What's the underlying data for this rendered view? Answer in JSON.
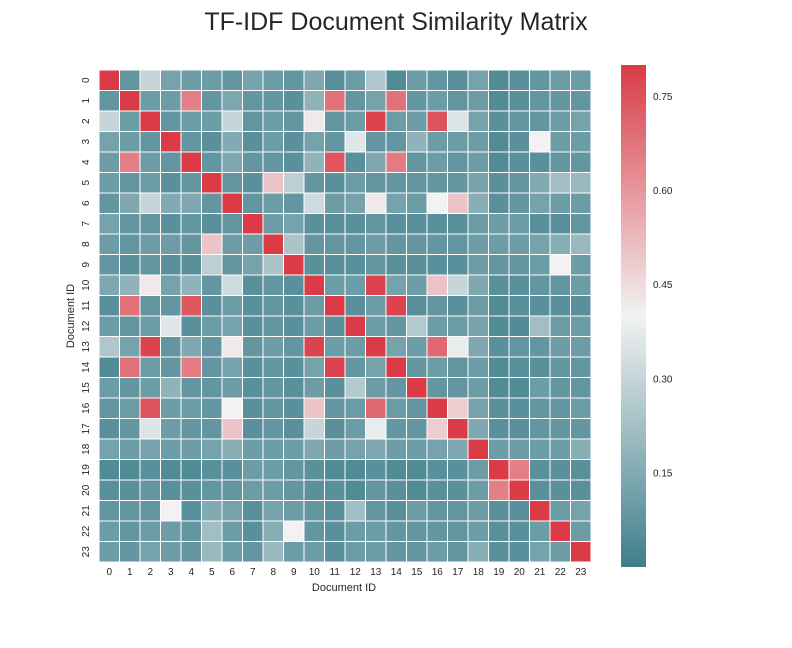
{
  "chart_data": {
    "type": "heatmap",
    "title": "TF-IDF Document Similarity Matrix",
    "xlabel": "Document ID",
    "ylabel": "Document ID",
    "x_categories": [
      "0",
      "1",
      "2",
      "3",
      "4",
      "5",
      "6",
      "7",
      "8",
      "9",
      "10",
      "11",
      "12",
      "13",
      "14",
      "15",
      "16",
      "17",
      "18",
      "19",
      "20",
      "21",
      "22",
      "23"
    ],
    "y_categories": [
      "0",
      "1",
      "2",
      "3",
      "4",
      "5",
      "6",
      "7",
      "8",
      "9",
      "10",
      "11",
      "12",
      "13",
      "14",
      "15",
      "16",
      "17",
      "18",
      "19",
      "20",
      "21",
      "22",
      "23"
    ],
    "colorbar": {
      "min": 0.0,
      "max": 0.8,
      "ticks": [
        "0.15",
        "0.30",
        "0.45",
        "0.60",
        "0.75"
      ],
      "low_color": "#3f7f8c",
      "mid_color": "#f2f2f2",
      "high_color": "#da3b46"
    },
    "values": [
      [
        0.8,
        0.08,
        0.3,
        0.12,
        0.1,
        0.1,
        0.08,
        0.12,
        0.1,
        0.08,
        0.14,
        0.06,
        0.1,
        0.25,
        0.04,
        0.1,
        0.08,
        0.06,
        0.12,
        0.04,
        0.06,
        0.08,
        0.1,
        0.1
      ],
      [
        0.08,
        0.8,
        0.1,
        0.1,
        0.65,
        0.08,
        0.14,
        0.08,
        0.08,
        0.06,
        0.18,
        0.68,
        0.08,
        0.12,
        0.68,
        0.08,
        0.1,
        0.08,
        0.1,
        0.04,
        0.06,
        0.08,
        0.08,
        0.08
      ],
      [
        0.3,
        0.1,
        0.8,
        0.08,
        0.1,
        0.1,
        0.3,
        0.08,
        0.1,
        0.08,
        0.42,
        0.08,
        0.1,
        0.78,
        0.1,
        0.1,
        0.75,
        0.35,
        0.12,
        0.06,
        0.08,
        0.08,
        0.1,
        0.12
      ],
      [
        0.12,
        0.1,
        0.08,
        0.8,
        0.08,
        0.06,
        0.15,
        0.06,
        0.1,
        0.06,
        0.12,
        0.08,
        0.36,
        0.08,
        0.08,
        0.18,
        0.1,
        0.1,
        0.1,
        0.04,
        0.06,
        0.4,
        0.1,
        0.1
      ],
      [
        0.1,
        0.65,
        0.1,
        0.08,
        0.8,
        0.08,
        0.14,
        0.08,
        0.08,
        0.06,
        0.18,
        0.74,
        0.06,
        0.14,
        0.66,
        0.08,
        0.1,
        0.08,
        0.1,
        0.04,
        0.06,
        0.06,
        0.08,
        0.08
      ],
      [
        0.1,
        0.08,
        0.1,
        0.06,
        0.08,
        0.8,
        0.08,
        0.06,
        0.5,
        0.28,
        0.08,
        0.06,
        0.1,
        0.08,
        0.08,
        0.08,
        0.08,
        0.08,
        0.12,
        0.06,
        0.08,
        0.15,
        0.22,
        0.2
      ],
      [
        0.08,
        0.14,
        0.3,
        0.15,
        0.14,
        0.08,
        0.8,
        0.08,
        0.1,
        0.08,
        0.32,
        0.1,
        0.12,
        0.42,
        0.12,
        0.1,
        0.4,
        0.5,
        0.16,
        0.06,
        0.08,
        0.12,
        0.1,
        0.1
      ],
      [
        0.12,
        0.08,
        0.08,
        0.06,
        0.08,
        0.06,
        0.08,
        0.8,
        0.1,
        0.12,
        0.06,
        0.06,
        0.06,
        0.08,
        0.06,
        0.06,
        0.06,
        0.06,
        0.1,
        0.1,
        0.1,
        0.06,
        0.06,
        0.08
      ],
      [
        0.1,
        0.08,
        0.1,
        0.1,
        0.08,
        0.5,
        0.1,
        0.1,
        0.8,
        0.24,
        0.08,
        0.08,
        0.08,
        0.1,
        0.08,
        0.08,
        0.08,
        0.08,
        0.1,
        0.1,
        0.1,
        0.12,
        0.16,
        0.2
      ],
      [
        0.08,
        0.06,
        0.08,
        0.06,
        0.06,
        0.28,
        0.08,
        0.12,
        0.24,
        0.8,
        0.06,
        0.06,
        0.06,
        0.08,
        0.06,
        0.06,
        0.06,
        0.06,
        0.1,
        0.08,
        0.08,
        0.1,
        0.4,
        0.1
      ],
      [
        0.14,
        0.18,
        0.42,
        0.12,
        0.18,
        0.08,
        0.32,
        0.06,
        0.08,
        0.06,
        0.8,
        0.1,
        0.1,
        0.78,
        0.12,
        0.1,
        0.5,
        0.3,
        0.14,
        0.06,
        0.06,
        0.08,
        0.08,
        0.1
      ],
      [
        0.06,
        0.68,
        0.08,
        0.08,
        0.74,
        0.06,
        0.1,
        0.06,
        0.08,
        0.06,
        0.1,
        0.8,
        0.06,
        0.1,
        0.78,
        0.06,
        0.08,
        0.06,
        0.1,
        0.04,
        0.06,
        0.06,
        0.06,
        0.06
      ],
      [
        0.1,
        0.08,
        0.1,
        0.36,
        0.06,
        0.1,
        0.12,
        0.06,
        0.08,
        0.06,
        0.1,
        0.06,
        0.8,
        0.1,
        0.08,
        0.26,
        0.1,
        0.1,
        0.12,
        0.04,
        0.04,
        0.22,
        0.1,
        0.1
      ],
      [
        0.25,
        0.12,
        0.78,
        0.08,
        0.14,
        0.08,
        0.42,
        0.08,
        0.1,
        0.08,
        0.78,
        0.1,
        0.1,
        0.8,
        0.12,
        0.1,
        0.7,
        0.38,
        0.14,
        0.06,
        0.08,
        0.08,
        0.1,
        0.1
      ],
      [
        0.04,
        0.68,
        0.1,
        0.08,
        0.66,
        0.08,
        0.12,
        0.06,
        0.08,
        0.06,
        0.12,
        0.78,
        0.08,
        0.12,
        0.8,
        0.08,
        0.1,
        0.08,
        0.1,
        0.04,
        0.06,
        0.06,
        0.08,
        0.08
      ],
      [
        0.1,
        0.08,
        0.1,
        0.18,
        0.08,
        0.08,
        0.1,
        0.06,
        0.08,
        0.06,
        0.1,
        0.06,
        0.26,
        0.1,
        0.08,
        0.8,
        0.08,
        0.08,
        0.1,
        0.04,
        0.04,
        0.1,
        0.08,
        0.08
      ],
      [
        0.08,
        0.1,
        0.75,
        0.1,
        0.1,
        0.08,
        0.4,
        0.06,
        0.08,
        0.06,
        0.5,
        0.08,
        0.1,
        0.7,
        0.1,
        0.08,
        0.8,
        0.48,
        0.12,
        0.06,
        0.06,
        0.08,
        0.08,
        0.1
      ],
      [
        0.06,
        0.08,
        0.35,
        0.1,
        0.08,
        0.08,
        0.5,
        0.06,
        0.08,
        0.06,
        0.3,
        0.06,
        0.1,
        0.38,
        0.08,
        0.08,
        0.48,
        0.8,
        0.14,
        0.06,
        0.06,
        0.08,
        0.08,
        0.08
      ],
      [
        0.12,
        0.1,
        0.12,
        0.1,
        0.1,
        0.12,
        0.16,
        0.1,
        0.1,
        0.1,
        0.14,
        0.1,
        0.12,
        0.14,
        0.1,
        0.1,
        0.12,
        0.14,
        0.8,
        0.1,
        0.1,
        0.1,
        0.1,
        0.16
      ],
      [
        0.04,
        0.04,
        0.06,
        0.04,
        0.04,
        0.06,
        0.06,
        0.1,
        0.1,
        0.08,
        0.06,
        0.04,
        0.04,
        0.06,
        0.04,
        0.04,
        0.06,
        0.06,
        0.1,
        0.8,
        0.65,
        0.06,
        0.06,
        0.06
      ],
      [
        0.06,
        0.06,
        0.08,
        0.06,
        0.06,
        0.08,
        0.08,
        0.1,
        0.1,
        0.08,
        0.06,
        0.06,
        0.04,
        0.08,
        0.06,
        0.04,
        0.06,
        0.06,
        0.1,
        0.65,
        0.8,
        0.06,
        0.06,
        0.06
      ],
      [
        0.08,
        0.08,
        0.08,
        0.4,
        0.06,
        0.15,
        0.12,
        0.06,
        0.12,
        0.1,
        0.08,
        0.06,
        0.22,
        0.08,
        0.06,
        0.1,
        0.08,
        0.08,
        0.1,
        0.06,
        0.06,
        0.8,
        0.1,
        0.12
      ],
      [
        0.1,
        0.08,
        0.1,
        0.1,
        0.08,
        0.22,
        0.1,
        0.06,
        0.16,
        0.4,
        0.08,
        0.06,
        0.1,
        0.1,
        0.08,
        0.08,
        0.08,
        0.08,
        0.1,
        0.06,
        0.06,
        0.1,
        0.8,
        0.1
      ],
      [
        0.1,
        0.08,
        0.12,
        0.1,
        0.08,
        0.2,
        0.1,
        0.08,
        0.2,
        0.1,
        0.1,
        0.06,
        0.1,
        0.1,
        0.08,
        0.08,
        0.1,
        0.08,
        0.16,
        0.06,
        0.06,
        0.12,
        0.1,
        0.8
      ]
    ]
  }
}
